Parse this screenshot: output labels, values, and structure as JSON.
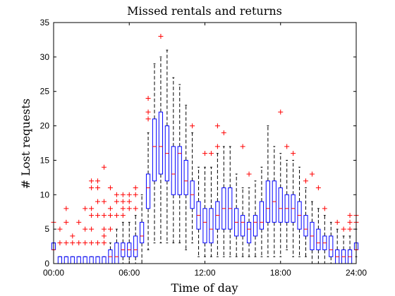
{
  "chart_data": {
    "type": "box",
    "title": "Missed rentals and returns",
    "xlabel": "Time of day",
    "ylabel": "# Lost requests",
    "xlim": [
      0,
      24
    ],
    "ylim": [
      0,
      35
    ],
    "x_ticks": [
      {
        "value": 0,
        "label": "00:00"
      },
      {
        "value": 6,
        "label": "06:00"
      },
      {
        "value": 12,
        "label": "12:00"
      },
      {
        "value": 18,
        "label": "18:00"
      },
      {
        "value": 24,
        "label": "24:00"
      }
    ],
    "y_ticks": [
      0,
      5,
      10,
      15,
      20,
      25,
      30,
      35
    ],
    "grid": false,
    "colors": {
      "box": "#0000ff",
      "median": "#ff0000",
      "whisker": "#000000",
      "outlier": "#ff0000"
    },
    "boxes": [
      {
        "x": 0.0,
        "q1": 2,
        "median": 2,
        "q3": 3,
        "whisker_low": 2,
        "whisker_high": 3,
        "outliers": [
          6
        ]
      },
      {
        "x": 0.5,
        "q1": 0,
        "median": 0,
        "q3": 1,
        "whisker_low": 0,
        "whisker_high": 1,
        "outliers": [
          3,
          5
        ]
      },
      {
        "x": 1.0,
        "q1": 0,
        "median": 0,
        "q3": 1,
        "whisker_low": 0,
        "whisker_high": 1,
        "outliers": [
          3,
          6,
          8
        ]
      },
      {
        "x": 1.5,
        "q1": 0,
        "median": 0,
        "q3": 1,
        "whisker_low": 0,
        "whisker_high": 1,
        "outliers": [
          3,
          4
        ]
      },
      {
        "x": 2.0,
        "q1": 0,
        "median": 0,
        "q3": 1,
        "whisker_low": 0,
        "whisker_high": 1,
        "outliers": [
          3,
          6
        ]
      },
      {
        "x": 2.5,
        "q1": 0,
        "median": 0,
        "q3": 1,
        "whisker_low": 0,
        "whisker_high": 1,
        "outliers": [
          3,
          5,
          8
        ]
      },
      {
        "x": 3.0,
        "q1": 0,
        "median": 0,
        "q3": 1,
        "whisker_low": 0,
        "whisker_high": 1,
        "outliers": [
          3,
          5,
          7,
          8,
          11,
          12
        ]
      },
      {
        "x": 3.5,
        "q1": 0,
        "median": 0,
        "q3": 1,
        "whisker_low": 0,
        "whisker_high": 1,
        "outliers": [
          3,
          7,
          9,
          11,
          12
        ]
      },
      {
        "x": 4.0,
        "q1": 0,
        "median": 0,
        "q3": 1,
        "whisker_low": 0,
        "whisker_high": 1,
        "outliers": [
          3,
          4,
          5,
          7,
          9,
          14
        ]
      },
      {
        "x": 4.5,
        "q1": 0,
        "median": 1,
        "q3": 2,
        "whisker_low": 0,
        "whisker_high": 3,
        "outliers": [
          5,
          7,
          8,
          11
        ]
      },
      {
        "x": 5.0,
        "q1": 0,
        "median": 1,
        "q3": 3,
        "whisker_low": 0,
        "whisker_high": 5,
        "outliers": [
          7,
          9,
          10
        ]
      },
      {
        "x": 5.5,
        "q1": 1,
        "median": 2,
        "q3": 3,
        "whisker_low": 0,
        "whisker_high": 6,
        "outliers": [
          7,
          8,
          9,
          10
        ]
      },
      {
        "x": 6.0,
        "q1": 1,
        "median": 2,
        "q3": 3,
        "whisker_low": 0,
        "whisker_high": 6,
        "outliers": [
          8,
          9,
          10
        ]
      },
      {
        "x": 6.5,
        "q1": 1,
        "median": 2,
        "q3": 4,
        "whisker_low": 0,
        "whisker_high": 7,
        "outliers": [
          8,
          10,
          11
        ]
      },
      {
        "x": 7.0,
        "q1": 3,
        "median": 4,
        "q3": 6,
        "whisker_low": 0,
        "whisker_high": 10,
        "outliers": []
      },
      {
        "x": 7.5,
        "q1": 8,
        "median": 11,
        "q3": 13,
        "whisker_low": 2,
        "whisker_high": 19,
        "outliers": [
          21,
          22,
          24
        ]
      },
      {
        "x": 8.0,
        "q1": 12,
        "median": 17,
        "q3": 21,
        "whisker_low": 3,
        "whisker_high": 29,
        "outliers": []
      },
      {
        "x": 8.5,
        "q1": 13,
        "median": 17,
        "q3": 22,
        "whisker_low": 3,
        "whisker_high": 30,
        "outliers": [
          33
        ]
      },
      {
        "x": 9.0,
        "q1": 12,
        "median": 16,
        "q3": 20,
        "whisker_low": 3,
        "whisker_high": 31,
        "outliers": []
      },
      {
        "x": 9.5,
        "q1": 10,
        "median": 13,
        "q3": 17,
        "whisker_low": 3,
        "whisker_high": 27,
        "outliers": []
      },
      {
        "x": 10.0,
        "q1": 10,
        "median": 16,
        "q3": 17,
        "whisker_low": 3,
        "whisker_high": 26,
        "outliers": []
      },
      {
        "x": 10.5,
        "q1": 10,
        "median": 12,
        "q3": 15,
        "whisker_low": 2,
        "whisker_high": 23,
        "outliers": []
      },
      {
        "x": 11.0,
        "q1": 8,
        "median": 10,
        "q3": 12,
        "whisker_low": 3,
        "whisker_high": 19,
        "outliers": [
          20
        ]
      },
      {
        "x": 11.5,
        "q1": 5,
        "median": 7,
        "q3": 9,
        "whisker_low": 1,
        "whisker_high": 14,
        "outliers": []
      },
      {
        "x": 12.0,
        "q1": 3,
        "median": 6,
        "q3": 8,
        "whisker_low": 1,
        "whisker_high": 14,
        "outliers": [
          16
        ]
      },
      {
        "x": 12.5,
        "q1": 3,
        "median": 5,
        "q3": 8,
        "whisker_low": 1,
        "whisker_high": 14,
        "outliers": [
          16
        ]
      },
      {
        "x": 13.0,
        "q1": 5,
        "median": 7,
        "q3": 9,
        "whisker_low": 1,
        "whisker_high": 16,
        "outliers": [
          17,
          20
        ]
      },
      {
        "x": 13.5,
        "q1": 5,
        "median": 8,
        "q3": 11,
        "whisker_low": 1,
        "whisker_high": 17,
        "outliers": [
          19
        ]
      },
      {
        "x": 14.0,
        "q1": 5,
        "median": 8,
        "q3": 11,
        "whisker_low": 1,
        "whisker_high": 17,
        "outliers": []
      },
      {
        "x": 14.5,
        "q1": 4,
        "median": 6,
        "q3": 8,
        "whisker_low": 1,
        "whisker_high": 13,
        "outliers": []
      },
      {
        "x": 15.0,
        "q1": 4,
        "median": 6,
        "q3": 7,
        "whisker_low": 1,
        "whisker_high": 11,
        "outliers": [
          17
        ]
      },
      {
        "x": 15.5,
        "q1": 3,
        "median": 5,
        "q3": 6,
        "whisker_low": 1,
        "whisker_high": 11,
        "outliers": [
          13
        ]
      },
      {
        "x": 16.0,
        "q1": 4,
        "median": 6,
        "q3": 7,
        "whisker_low": 1,
        "whisker_high": 12,
        "outliers": []
      },
      {
        "x": 16.5,
        "q1": 5,
        "median": 6,
        "q3": 9,
        "whisker_low": 1,
        "whisker_high": 14,
        "outliers": []
      },
      {
        "x": 17.0,
        "q1": 6,
        "median": 8,
        "q3": 12,
        "whisker_low": 1,
        "whisker_high": 20,
        "outliers": []
      },
      {
        "x": 17.5,
        "q1": 6,
        "median": 9,
        "q3": 12,
        "whisker_low": 1,
        "whisker_high": 17,
        "outliers": []
      },
      {
        "x": 18.0,
        "q1": 6,
        "median": 8,
        "q3": 11,
        "whisker_low": 1,
        "whisker_high": 16,
        "outliers": [
          22
        ]
      },
      {
        "x": 18.5,
        "q1": 6,
        "median": 8,
        "q3": 10,
        "whisker_low": 2,
        "whisker_high": 15,
        "outliers": [
          17
        ]
      },
      {
        "x": 19.0,
        "q1": 6,
        "median": 8,
        "q3": 10,
        "whisker_low": 1,
        "whisker_high": 15,
        "outliers": [
          16
        ]
      },
      {
        "x": 19.5,
        "q1": 5,
        "median": 7,
        "q3": 9,
        "whisker_low": 1,
        "whisker_high": 14,
        "outliers": []
      },
      {
        "x": 20.0,
        "q1": 4,
        "median": 5,
        "q3": 7,
        "whisker_low": 1,
        "whisker_high": 11,
        "outliers": [
          12
        ]
      },
      {
        "x": 20.5,
        "q1": 2,
        "median": 4,
        "q3": 6,
        "whisker_low": 0,
        "whisker_high": 9,
        "outliers": [
          13
        ]
      },
      {
        "x": 21.0,
        "q1": 2,
        "median": 3,
        "q3": 5,
        "whisker_low": 0,
        "whisker_high": 8,
        "outliers": [
          11
        ]
      },
      {
        "x": 21.5,
        "q1": 2,
        "median": 3,
        "q3": 4,
        "whisker_low": 0,
        "whisker_high": 7,
        "outliers": [
          8
        ]
      },
      {
        "x": 22.0,
        "q1": 1,
        "median": 2,
        "q3": 4,
        "whisker_low": 0,
        "whisker_high": 6,
        "outliers": []
      },
      {
        "x": 22.5,
        "q1": 0,
        "median": 1,
        "q3": 2,
        "whisker_low": 0,
        "whisker_high": 5,
        "outliers": [
          6
        ]
      },
      {
        "x": 23.0,
        "q1": 0,
        "median": 1,
        "q3": 2,
        "whisker_low": 0,
        "whisker_high": 4,
        "outliers": [
          5
        ]
      },
      {
        "x": 23.5,
        "q1": 0,
        "median": 1,
        "q3": 2,
        "whisker_low": 0,
        "whisker_high": 4,
        "outliers": [
          5,
          6,
          7
        ]
      },
      {
        "x": 24.0,
        "q1": 2,
        "median": 2,
        "q3": 3,
        "whisker_low": 1,
        "whisker_high": 5,
        "outliers": [
          6,
          7
        ]
      }
    ]
  }
}
